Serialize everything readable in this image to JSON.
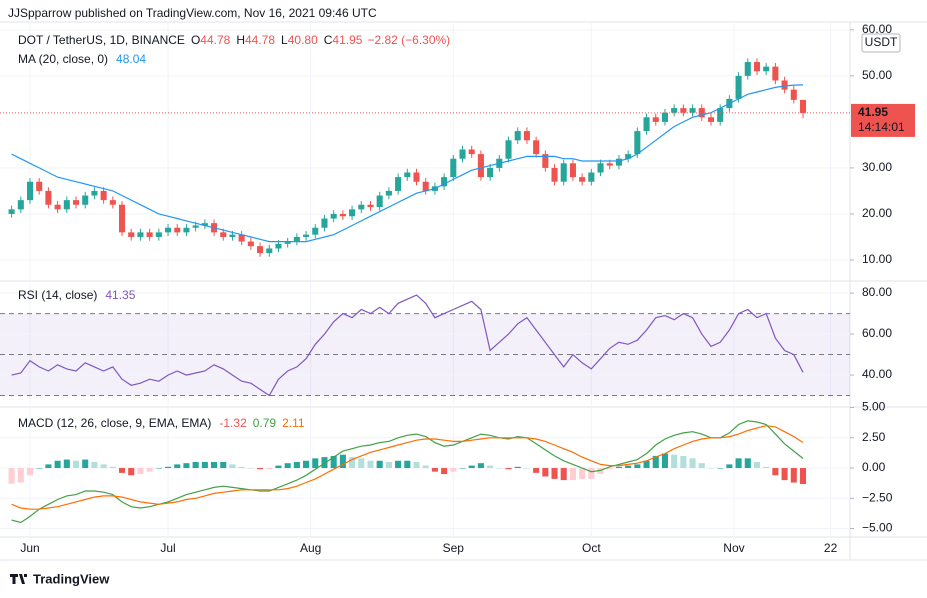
{
  "header": "JJSpparrow published on TradingView.com, Nov 16, 2021 09:46 UTC",
  "footer": "TradingView",
  "chart_data": [
    {
      "type": "candlestick",
      "symbol": "DOT / TetherUS, 1D, BINANCE",
      "ohlc_legend": [
        {
          "key": "O",
          "label": "44.78"
        },
        {
          "key": "H",
          "label": "44.78"
        },
        {
          "key": "L",
          "label": "40.80"
        },
        {
          "key": "C",
          "label": "41.95"
        }
      ],
      "change": "−2.82 (−6.30%)",
      "currency": "USDT",
      "countdown": "14:14:01",
      "x": [
        "2021-05-28",
        "2021-05-30",
        "2021-06-01",
        "2021-06-03",
        "2021-06-05",
        "2021-06-07",
        "2021-06-09",
        "2021-06-11",
        "2021-06-13",
        "2021-06-15",
        "2021-06-17",
        "2021-06-19",
        "2021-06-21",
        "2021-06-23",
        "2021-06-25",
        "2021-06-27",
        "2021-06-29",
        "2021-07-01",
        "2021-07-03",
        "2021-07-05",
        "2021-07-07",
        "2021-07-09",
        "2021-07-11",
        "2021-07-13",
        "2021-07-15",
        "2021-07-17",
        "2021-07-19",
        "2021-07-21",
        "2021-07-23",
        "2021-07-25",
        "2021-07-27",
        "2021-07-29",
        "2021-07-31",
        "2021-08-02",
        "2021-08-04",
        "2021-08-06",
        "2021-08-08",
        "2021-08-10",
        "2021-08-12",
        "2021-08-14",
        "2021-08-16",
        "2021-08-18",
        "2021-08-20",
        "2021-08-22",
        "2021-08-24",
        "2021-08-26",
        "2021-08-28",
        "2021-08-30",
        "2021-09-01",
        "2021-09-03",
        "2021-09-05",
        "2021-09-07",
        "2021-09-09",
        "2021-09-11",
        "2021-09-13",
        "2021-09-15",
        "2021-09-17",
        "2021-09-19",
        "2021-09-21",
        "2021-09-23",
        "2021-09-25",
        "2021-09-27",
        "2021-09-29",
        "2021-10-01",
        "2021-10-03",
        "2021-10-05",
        "2021-10-07",
        "2021-10-09",
        "2021-10-11",
        "2021-10-13",
        "2021-10-15",
        "2021-10-17",
        "2021-10-19",
        "2021-10-21",
        "2021-10-23",
        "2021-10-25",
        "2021-10-27",
        "2021-10-29",
        "2021-10-31",
        "2021-11-02",
        "2021-11-04",
        "2021-11-06",
        "2021-11-08",
        "2021-11-10",
        "2021-11-12",
        "2021-11-14",
        "2021-11-16"
      ],
      "open": [
        20,
        21,
        23,
        27,
        25,
        22,
        21,
        23,
        22,
        24,
        25,
        23,
        22,
        16,
        15,
        16,
        15,
        16,
        17,
        16,
        17,
        17.5,
        18,
        16,
        15,
        15.5,
        14,
        13,
        11.5,
        12.5,
        13.5,
        14,
        15,
        15.5,
        17,
        19,
        20,
        19.5,
        21,
        22,
        21.5,
        24,
        25,
        28,
        29,
        27,
        25,
        26,
        28,
        32,
        34,
        33,
        28,
        30,
        32,
        36,
        38,
        36,
        33,
        30,
        27,
        31,
        28,
        27,
        29,
        31,
        30.5,
        32,
        33,
        38,
        41,
        40,
        42,
        43,
        42,
        43,
        41,
        40,
        43,
        45,
        50,
        53,
        51,
        52,
        49,
        47,
        44.78
      ],
      "high": [
        21.8,
        23.8,
        27.8,
        27.8,
        25.8,
        22.8,
        23.8,
        23.8,
        24.8,
        25.8,
        25.8,
        23.8,
        22.8,
        16.8,
        16.8,
        16.8,
        16.8,
        17.8,
        17.8,
        17.8,
        18.3,
        18.8,
        18.8,
        16.8,
        16.3,
        16.3,
        14.8,
        13.8,
        13.3,
        14.3,
        14.8,
        15.8,
        16.3,
        17.8,
        19.8,
        20.8,
        20.8,
        21.8,
        22.8,
        22.8,
        24.8,
        25.8,
        28.8,
        29.8,
        29.8,
        27.8,
        26.8,
        28.8,
        32.8,
        34.8,
        34.8,
        33.8,
        30.8,
        32.8,
        36.8,
        38.8,
        38.8,
        36.8,
        33.8,
        30.8,
        31.8,
        31.8,
        28.8,
        29.8,
        31.8,
        31.8,
        32.8,
        33.8,
        38.8,
        41.8,
        41.8,
        42.8,
        43.8,
        43.8,
        43.8,
        43.8,
        41.8,
        43.8,
        45.8,
        50.8,
        53.8,
        53.8,
        52.8,
        52.8,
        49.8,
        47.8,
        44.78
      ],
      "low": [
        19.2,
        20.2,
        22.2,
        24.2,
        21.2,
        20.2,
        20.2,
        21.2,
        21.2,
        23.2,
        22.2,
        21.2,
        15.2,
        14.2,
        14.2,
        14.2,
        14.2,
        15.2,
        15.2,
        15.2,
        16.2,
        16.7,
        15.2,
        14.2,
        14.2,
        13.2,
        12.2,
        10.7,
        10.7,
        11.7,
        12.7,
        13.2,
        14.2,
        14.7,
        16.2,
        18.2,
        18.7,
        18.7,
        20.2,
        20.7,
        20.7,
        23.2,
        24.2,
        27.2,
        26.2,
        24.2,
        24.2,
        25.2,
        27.2,
        31.2,
        32.2,
        27.2,
        27.2,
        29.2,
        31.2,
        35.2,
        35.2,
        32.2,
        29.2,
        26.2,
        26.2,
        27.2,
        26.2,
        26.2,
        28.2,
        29.7,
        29.7,
        31.2,
        32.2,
        37.2,
        39.2,
        39.2,
        41.2,
        41.2,
        41.2,
        40.2,
        39.2,
        39.2,
        42.2,
        44.2,
        49.2,
        50.2,
        50.2,
        48.2,
        46.2,
        43.98,
        40.8
      ],
      "close": [
        21,
        23,
        27,
        25,
        22,
        21,
        23,
        22,
        24,
        25,
        23,
        22,
        16,
        15,
        16,
        15,
        16,
        17,
        16,
        17,
        17.5,
        18,
        16,
        15,
        15.5,
        14,
        13,
        11.5,
        12.5,
        13.5,
        14,
        15,
        15.5,
        17,
        19,
        20,
        19.5,
        21,
        22,
        21.5,
        24,
        25,
        28,
        29,
        27,
        25,
        26,
        28,
        32,
        34,
        33,
        28,
        30,
        32,
        36,
        38,
        36,
        33,
        30,
        27,
        31,
        28,
        27,
        29,
        31,
        30.5,
        32,
        33,
        38,
        41,
        40,
        42,
        43,
        42,
        43,
        41,
        40,
        43,
        45,
        50,
        53,
        51,
        52,
        49,
        47,
        44.78,
        41.95
      ],
      "up_color": "#26a69a",
      "down_color": "#ef5350",
      "series": [
        {
          "name": "MA (20, close, 0)",
          "color": "#2196f3",
          "values": [
            33,
            32,
            31,
            30,
            29,
            28,
            27.5,
            27,
            26.5,
            26,
            25.5,
            25,
            24,
            23,
            22,
            21,
            20,
            19.5,
            19,
            18.5,
            18,
            17.5,
            17,
            16.5,
            16,
            15.5,
            15,
            14.5,
            14,
            14,
            14,
            14,
            14,
            14.5,
            15,
            15.5,
            16.5,
            17.5,
            18.5,
            19.5,
            20.5,
            21.5,
            22.5,
            23.5,
            24.5,
            25,
            25.5,
            26.5,
            27.5,
            28.5,
            29.5,
            30,
            30.5,
            31,
            31.5,
            32,
            32.5,
            32.5,
            32.5,
            32.5,
            32,
            32,
            31.5,
            31.5,
            31.5,
            31.5,
            31.5,
            32,
            33,
            34.5,
            36,
            37.5,
            39,
            40,
            41,
            41.5,
            42,
            43,
            44,
            45,
            46,
            46.5,
            47,
            47.5,
            47.8,
            48,
            48.04
          ]
        }
      ],
      "xlim": [
        "2021-05-27",
        "2021-11-26"
      ],
      "xticks": [
        {
          "value": "2021-06-01",
          "label": "Jun"
        },
        {
          "value": "2021-07-01",
          "label": "Jul"
        },
        {
          "value": "2021-08-01",
          "label": "Aug"
        },
        {
          "value": "2021-09-01",
          "label": "Sep"
        },
        {
          "value": "2021-10-01",
          "label": "Oct"
        },
        {
          "value": "2021-11-01",
          "label": "Nov"
        },
        {
          "value": "2021-11-22",
          "label": "22"
        }
      ],
      "ylim": [
        5.65,
        61.7
      ],
      "yticks": [
        {
          "value": 10,
          "label": "10.00"
        },
        {
          "value": 20,
          "label": "20.00"
        },
        {
          "value": 30,
          "label": "30.00"
        },
        {
          "value": 50,
          "label": "50.00"
        },
        {
          "value": 60,
          "label": "60.00"
        }
      ],
      "grid": true
    },
    {
      "type": "line",
      "title": "RSI (14, close)",
      "series": [
        {
          "color": "#7e57c2",
          "values": [
            40,
            41,
            47,
            44,
            42,
            45,
            43,
            42,
            46,
            44,
            42,
            44,
            38,
            35,
            36,
            38,
            37,
            40,
            42,
            40,
            41,
            42,
            45,
            43,
            40,
            37,
            36,
            33,
            30,
            38,
            42,
            44,
            48,
            55,
            60,
            66,
            70,
            68,
            72,
            70,
            73,
            70,
            75,
            77,
            79,
            75,
            68,
            70,
            72,
            74,
            76,
            72,
            52,
            56,
            60,
            65,
            68,
            62,
            56,
            50,
            44,
            50,
            46,
            43,
            48,
            53,
            56,
            55,
            57,
            62,
            68,
            69,
            67,
            70,
            68,
            60,
            54,
            56,
            62,
            70,
            72,
            68,
            70,
            58,
            52,
            50,
            41.35
          ]
        }
      ],
      "levels": [
        70,
        50,
        30
      ],
      "band_color": "#7e57c2",
      "ylim": [
        24.9,
        85.4
      ],
      "yticks": [
        {
          "value": 40,
          "label": "40.00"
        },
        {
          "value": 60,
          "label": "60.00"
        },
        {
          "value": 80,
          "label": "80.00"
        }
      ],
      "grid": true
    },
    {
      "type": "macd",
      "title": "MACD (12, 26, close, 9, EMA, EMA)",
      "histogram": {
        "values": [
          -1.3,
          -1.2,
          -0.6,
          0,
          0.3,
          0.6,
          0.7,
          0.6,
          0.7,
          0.5,
          0.3,
          0.1,
          -0.4,
          -0.6,
          -0.5,
          -0.3,
          0,
          0.1,
          0.3,
          0.4,
          0.5,
          0.5,
          0.5,
          0.5,
          0.3,
          0.1,
          0,
          -0.1,
          -0.1,
          0.2,
          0.4,
          0.5,
          0.6,
          0.8,
          0.9,
          1,
          1.1,
          0.9,
          0.8,
          0.6,
          0.6,
          0.5,
          0.6,
          0.6,
          0.5,
          0.2,
          -0.3,
          -0.5,
          -0.3,
          0,
          0.2,
          0.4,
          0.2,
          0,
          -0.1,
          0.1,
          0,
          -0.4,
          -0.7,
          -0.9,
          -1,
          -1,
          -0.9,
          -0.9,
          -0.5,
          -0.1,
          0.1,
          0.2,
          0.3,
          0.6,
          1,
          1.2,
          1.1,
          1,
          0.8,
          0.4,
          0,
          0,
          0.3,
          0.8,
          0.8,
          0.5,
          0.1,
          -0.6,
          -1,
          -1.2,
          -1.32
        ],
        "colors": {
          "up_rising": "#26a69a",
          "up_falling": "#b2dfdb",
          "down_falling": "#ef5350",
          "down_rising": "#ffcdd2"
        }
      },
      "series": [
        {
          "color": "#43a047",
          "values": [
            -4.3,
            -4.5,
            -4,
            -3.4,
            -3,
            -2.6,
            -2.3,
            -2.2,
            -1.9,
            -1.9,
            -2,
            -2.2,
            -2.8,
            -3.2,
            -3.3,
            -3.2,
            -3,
            -2.8,
            -2.5,
            -2.2,
            -2,
            -1.8,
            -1.6,
            -1.5,
            -1.6,
            -1.7,
            -1.8,
            -1.9,
            -1.9,
            -1.6,
            -1.3,
            -1,
            -0.6,
            -0.1,
            0.4,
            0.9,
            1.4,
            1.6,
            1.8,
            1.9,
            2.1,
            2.2,
            2.5,
            2.7,
            2.8,
            2.6,
            2.1,
            1.8,
            1.9,
            2.2,
            2.5,
            2.8,
            2.7,
            2.5,
            2.4,
            2.6,
            2.5,
            2,
            1.5,
            1,
            0.6,
            0.3,
            0,
            -0.3,
            -0.2,
            0.1,
            0.3,
            0.5,
            0.7,
            1.2,
            1.9,
            2.4,
            2.7,
            2.9,
            3,
            2.8,
            2.5,
            2.5,
            2.9,
            3.6,
            3.9,
            3.8,
            3.6,
            2.8,
            2,
            1.4,
            0.79
          ]
        },
        {
          "color": "#ff6d00",
          "values": [
            -3,
            -3.3,
            -3.4,
            -3.4,
            -3.3,
            -3.2,
            -3,
            -2.8,
            -2.6,
            -2.4,
            -2.3,
            -2.3,
            -2.4,
            -2.6,
            -2.8,
            -2.9,
            -3,
            -2.9,
            -2.8,
            -2.6,
            -2.5,
            -2.3,
            -2.1,
            -2,
            -1.9,
            -1.8,
            -1.8,
            -1.8,
            -1.8,
            -1.8,
            -1.7,
            -1.5,
            -1.2,
            -0.9,
            -0.5,
            -0.1,
            0.3,
            0.7,
            1,
            1.3,
            1.5,
            1.7,
            1.9,
            2.1,
            2.3,
            2.4,
            2.4,
            2.3,
            2.2,
            2.2,
            2.3,
            2.4,
            2.5,
            2.5,
            2.5,
            2.5,
            2.5,
            2.4,
            2.2,
            1.9,
            1.6,
            1.3,
            0.9,
            0.6,
            0.3,
            0.2,
            0.2,
            0.3,
            0.4,
            0.6,
            0.9,
            1.2,
            1.6,
            1.9,
            2.2,
            2.4,
            2.5,
            2.5,
            2.6,
            2.8,
            3.1,
            3.3,
            3.5,
            3.4,
            3,
            2.6,
            2.11
          ]
        }
      ],
      "ylim": [
        -5.7,
        4.96
      ],
      "yticks": [
        {
          "value": 5,
          "label": "5.00"
        },
        {
          "value": 2.5,
          "label": "2.50"
        },
        {
          "value": 0,
          "label": "0.00"
        },
        {
          "value": -2.5,
          "label": "−2.50"
        },
        {
          "value": -5,
          "label": "−5.00"
        }
      ],
      "grid": true
    }
  ]
}
